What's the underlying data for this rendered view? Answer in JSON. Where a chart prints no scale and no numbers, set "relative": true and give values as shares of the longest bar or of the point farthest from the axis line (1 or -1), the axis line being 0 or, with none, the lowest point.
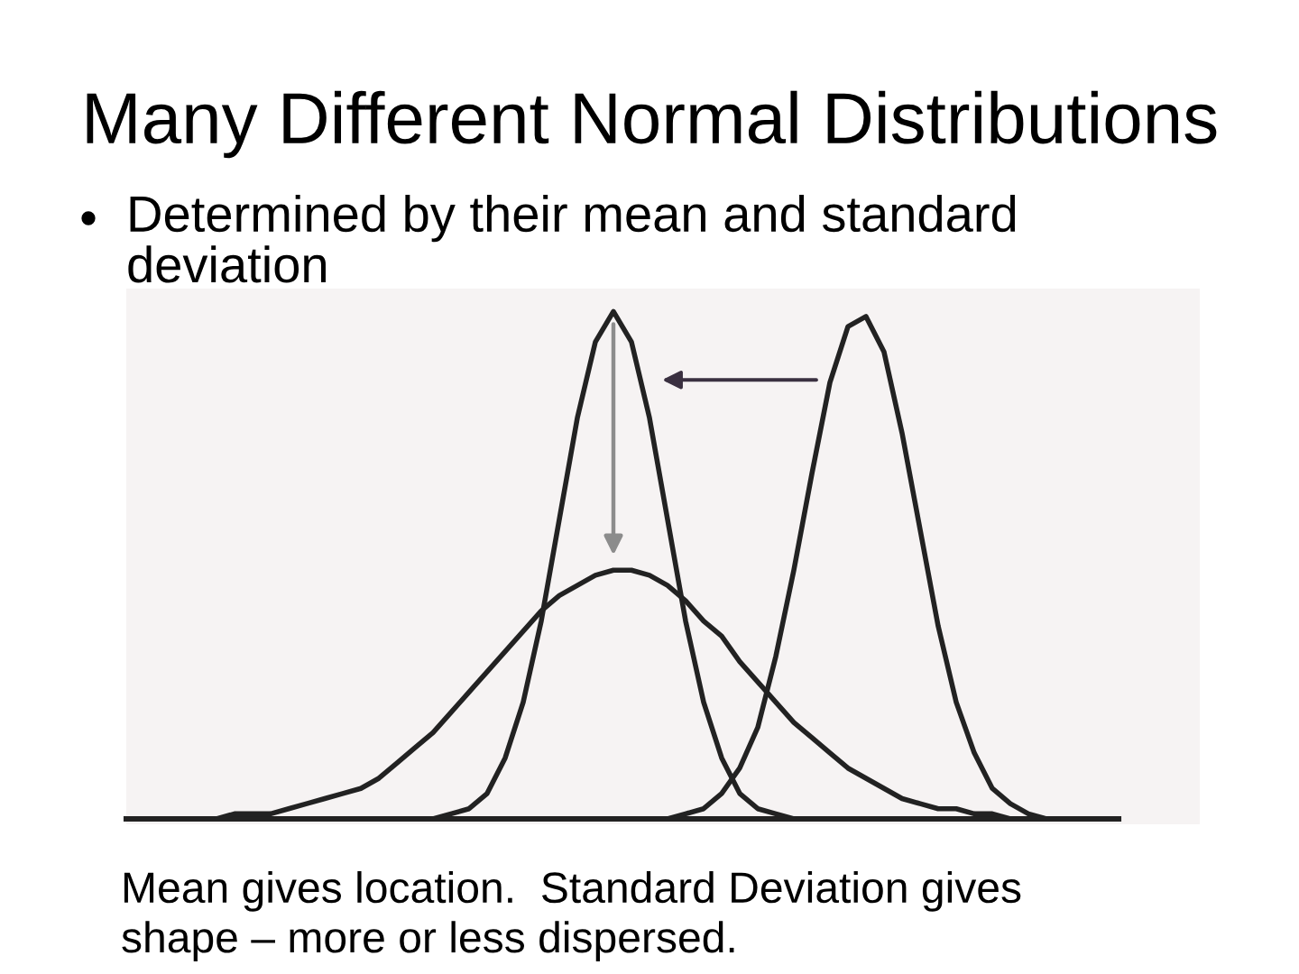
{
  "chart_data": {
    "type": "line",
    "title": "Many Different Normal Distributions",
    "subtitle": "Determined by their mean and standard\ndeviation",
    "annotations": [
      "Mean gives location.  Standard Deviation gives\nshape – more or less dispersed."
    ],
    "relative": true,
    "categories": [
      null,
      null,
      null,
      null,
      null,
      null,
      null,
      null,
      null,
      null,
      null,
      null,
      null,
      null,
      null,
      null,
      null,
      null,
      null,
      null,
      null,
      null,
      null,
      null,
      null,
      null,
      null,
      null,
      null,
      null,
      null,
      null,
      null,
      null,
      null,
      null,
      null,
      null,
      null,
      null,
      null,
      null,
      null,
      null,
      null,
      null,
      null,
      null,
      null,
      null,
      null,
      null,
      null,
      null,
      null,
      null
    ],
    "series": [
      {
        "color": "#222222",
        "values": [
          null,
          null,
          null,
          null,
          null,
          null,
          null,
          null,
          null,
          null,
          null,
          null,
          null,
          null,
          null,
          null,
          null,
          0,
          0.01,
          0.02,
          0.05,
          0.12,
          0.23,
          0.39,
          0.59,
          0.79,
          0.94,
          1,
          0.94,
          0.79,
          0.59,
          0.39,
          0.23,
          0.12,
          0.05,
          0.02,
          0.01,
          0,
          null,
          null,
          null,
          null,
          null,
          null,
          null,
          null,
          null,
          null,
          null,
          null,
          null,
          null,
          null,
          null,
          null,
          null
        ]
      },
      {
        "color": "#222222",
        "values": [
          null,
          null,
          null,
          null,
          null,
          0,
          0.01,
          0.01,
          0.01,
          0.02,
          0.03,
          0.04,
          0.05,
          0.06,
          0.08,
          0.11,
          0.14,
          0.17,
          0.21,
          0.25,
          0.29,
          0.33,
          0.37,
          0.41,
          0.44,
          0.46,
          0.48,
          0.49,
          0.49,
          0.48,
          0.46,
          0.43,
          0.39,
          0.36,
          0.31,
          0.27,
          0.23,
          0.19,
          0.16,
          0.13,
          0.1,
          0.08,
          0.06,
          0.04,
          0.03,
          0.02,
          0.02,
          0.01,
          0.01,
          0,
          null,
          null,
          null,
          null,
          null,
          null
        ]
      },
      {
        "color": "#222222",
        "values": [
          null,
          null,
          null,
          null,
          null,
          null,
          null,
          null,
          null,
          null,
          null,
          null,
          null,
          null,
          null,
          null,
          null,
          null,
          null,
          null,
          null,
          null,
          null,
          null,
          null,
          null,
          null,
          null,
          null,
          null,
          0,
          0.01,
          0.02,
          0.05,
          0.1,
          0.18,
          0.32,
          0.49,
          0.68,
          0.86,
          0.97,
          0.99,
          0.92,
          0.76,
          0.57,
          0.38,
          0.23,
          0.13,
          0.06,
          0.03,
          0.01,
          0,
          null,
          null,
          null,
          null
        ]
      }
    ]
  }
}
